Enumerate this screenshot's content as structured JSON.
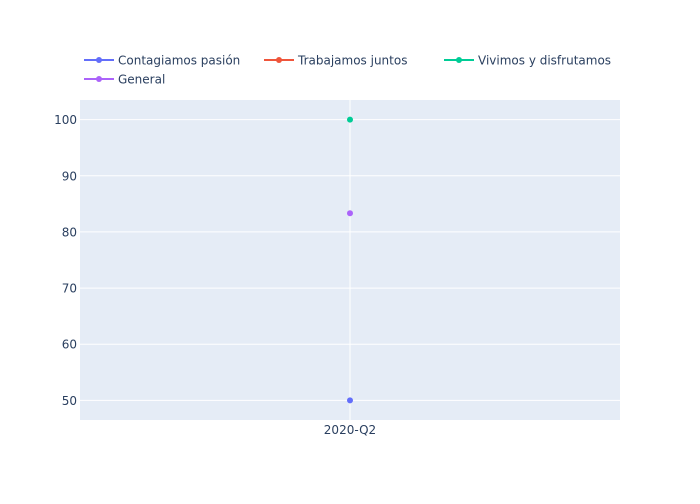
{
  "chart_data": {
    "type": "line",
    "title": "",
    "xlabel": "",
    "ylabel": "",
    "categories": [
      "2020-Q2"
    ],
    "ylim": [
      46.5,
      103.5
    ],
    "yticks": [
      50,
      60,
      70,
      80,
      90,
      100
    ],
    "grid": true,
    "legend": "top-horizontal",
    "series": [
      {
        "name": "Contagiamos pasión",
        "color": "#636efa",
        "values": [
          50
        ]
      },
      {
        "name": "Trabajamos juntos",
        "color": "#ef553b",
        "values": [
          null
        ]
      },
      {
        "name": "Vivimos y disfrutamos",
        "color": "#00cc96",
        "values": [
          100
        ]
      },
      {
        "name": "General",
        "color": "#ab63fa",
        "values": [
          83.33
        ]
      }
    ]
  }
}
